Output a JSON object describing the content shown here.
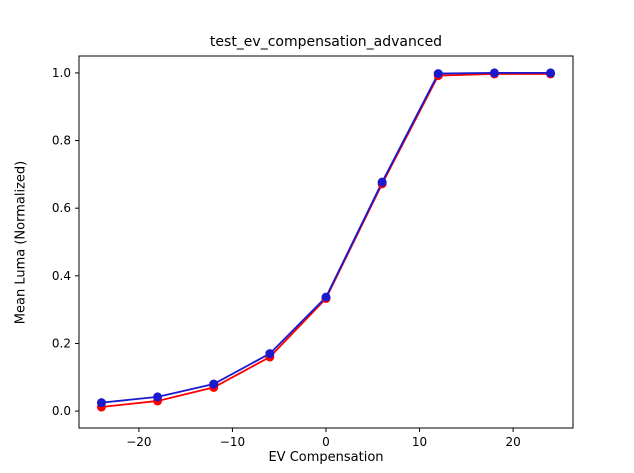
{
  "chart_data": {
    "type": "line",
    "title": "test_ev_compensation_advanced",
    "xlabel": "EV Compensation",
    "ylabel": "Mean Luma (Normalized)",
    "x": [
      -24,
      -18,
      -12,
      -6,
      0,
      6,
      12,
      18,
      24
    ],
    "series": [
      {
        "name": "red-series",
        "color": "#ff0000",
        "marker": "circle",
        "values": [
          0.012,
          0.03,
          0.07,
          0.16,
          0.333,
          0.672,
          0.992,
          0.997,
          0.997
        ]
      },
      {
        "name": "blue-series",
        "color": "#1a1acd",
        "marker": "circle",
        "values": [
          0.025,
          0.042,
          0.08,
          0.17,
          0.337,
          0.677,
          0.998,
          1.0,
          1.0
        ]
      }
    ],
    "xticks": [
      {
        "value": -20,
        "label": "−20"
      },
      {
        "value": -10,
        "label": "−10"
      },
      {
        "value": 0,
        "label": "0"
      },
      {
        "value": 10,
        "label": "10"
      },
      {
        "value": 20,
        "label": "20"
      }
    ],
    "yticks": [
      {
        "value": 0.0,
        "label": "0.0"
      },
      {
        "value": 0.2,
        "label": "0.2"
      },
      {
        "value": 0.4,
        "label": "0.4"
      },
      {
        "value": 0.6,
        "label": "0.6"
      },
      {
        "value": 0.8,
        "label": "0.8"
      },
      {
        "value": 1.0,
        "label": "1.0"
      }
    ],
    "xlim": [
      -26.4,
      26.4
    ],
    "ylim": [
      -0.05,
      1.05
    ],
    "grid": false,
    "legend": null,
    "axis_color": "#000000",
    "background_color": "#ffffff"
  }
}
